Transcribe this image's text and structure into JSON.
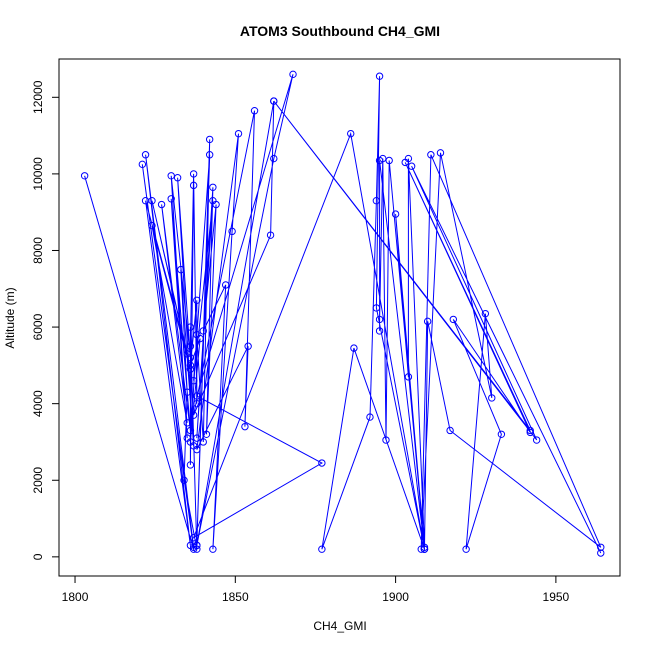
{
  "chart_data": {
    "type": "line",
    "title": "ATOM3 Southbound CH4_GMI",
    "xlabel": "CH4_GMI",
    "ylabel": "Altitude (m)",
    "xlim": [
      1795,
      1970
    ],
    "ylim": [
      -500,
      13000
    ],
    "x_ticks": [
      1800,
      1850,
      1900,
      1950
    ],
    "y_ticks": [
      0,
      2000,
      4000,
      6000,
      8000,
      10000,
      12000
    ],
    "grid": false,
    "legend": "none",
    "series_color": "#0000ff",
    "points": [
      [
        1803,
        9950
      ],
      [
        1837,
        200
      ],
      [
        1821,
        10250
      ],
      [
        1837,
        250
      ],
      [
        1822,
        10500
      ],
      [
        1836,
        300
      ],
      [
        1822,
        9300
      ],
      [
        1835,
        5300
      ],
      [
        1824,
        9300
      ],
      [
        1836,
        4900
      ],
      [
        1824,
        8650
      ],
      [
        1835,
        3500
      ],
      [
        1827,
        9200
      ],
      [
        1836,
        3300
      ],
      [
        1830,
        9350
      ],
      [
        1835,
        3100
      ],
      [
        1830,
        9950
      ],
      [
        1836,
        5200
      ],
      [
        1832,
        9900
      ],
      [
        1837,
        2900
      ],
      [
        1833,
        7500
      ],
      [
        1835,
        4300
      ],
      [
        1834,
        2000
      ],
      [
        1838,
        200
      ],
      [
        1836,
        6000
      ],
      [
        1836,
        2400
      ],
      [
        1837,
        9700
      ],
      [
        1836,
        5500
      ],
      [
        1837,
        10000
      ],
      [
        1838,
        4000
      ],
      [
        1838,
        6700
      ],
      [
        1836,
        5000
      ],
      [
        1839,
        5700
      ],
      [
        1836,
        3000
      ],
      [
        1838,
        5800
      ],
      [
        1840,
        3000
      ],
      [
        1842,
        10900
      ],
      [
        1838,
        300
      ],
      [
        1842,
        10500
      ],
      [
        1837,
        4600
      ],
      [
        1843,
        9300
      ],
      [
        1838,
        3100
      ],
      [
        1843,
        9650
      ],
      [
        1841,
        3200
      ],
      [
        1844,
        9200
      ],
      [
        1840,
        5900
      ],
      [
        1847,
        7100
      ],
      [
        1843,
        200
      ],
      [
        1849,
        8500
      ],
      [
        1851,
        11050
      ],
      [
        1838,
        2800
      ],
      [
        1854,
        5500
      ],
      [
        1853,
        3400
      ],
      [
        1856,
        11650
      ],
      [
        1837,
        3700
      ],
      [
        1861,
        8400
      ],
      [
        1862,
        11900
      ],
      [
        1838,
        300
      ],
      [
        1862,
        10400
      ],
      [
        1868,
        12600
      ],
      [
        1838,
        4200
      ],
      [
        1877,
        2450
      ],
      [
        1837,
        500
      ],
      [
        1886,
        11050
      ],
      [
        1909,
        200
      ],
      [
        1887,
        5450
      ],
      [
        1877,
        200
      ],
      [
        1892,
        3650
      ],
      [
        1894,
        9300
      ],
      [
        1895,
        12550
      ],
      [
        1894,
        6500
      ],
      [
        1909,
        200
      ],
      [
        1895,
        10350
      ],
      [
        1895,
        5900
      ],
      [
        1895,
        6200
      ],
      [
        1896,
        10400
      ],
      [
        1897,
        3050
      ],
      [
        1898,
        10350
      ],
      [
        1909,
        200
      ],
      [
        1900,
        8950
      ],
      [
        1904,
        4700
      ],
      [
        1904,
        10400
      ],
      [
        1909,
        250
      ],
      [
        1910,
        6150
      ],
      [
        1917,
        3300
      ],
      [
        1964,
        250
      ],
      [
        1911,
        10500
      ],
      [
        1908,
        200
      ],
      [
        1914,
        10550
      ],
      [
        1930,
        4150
      ],
      [
        1928,
        6350
      ],
      [
        1922,
        200
      ],
      [
        1933,
        3200
      ],
      [
        1918,
        6200
      ],
      [
        1942,
        3250
      ],
      [
        1903,
        10300
      ],
      [
        1942,
        3300
      ],
      [
        1862,
        11900
      ],
      [
        1944,
        3050
      ],
      [
        1905,
        10200
      ],
      [
        1964,
        100
      ]
    ]
  }
}
